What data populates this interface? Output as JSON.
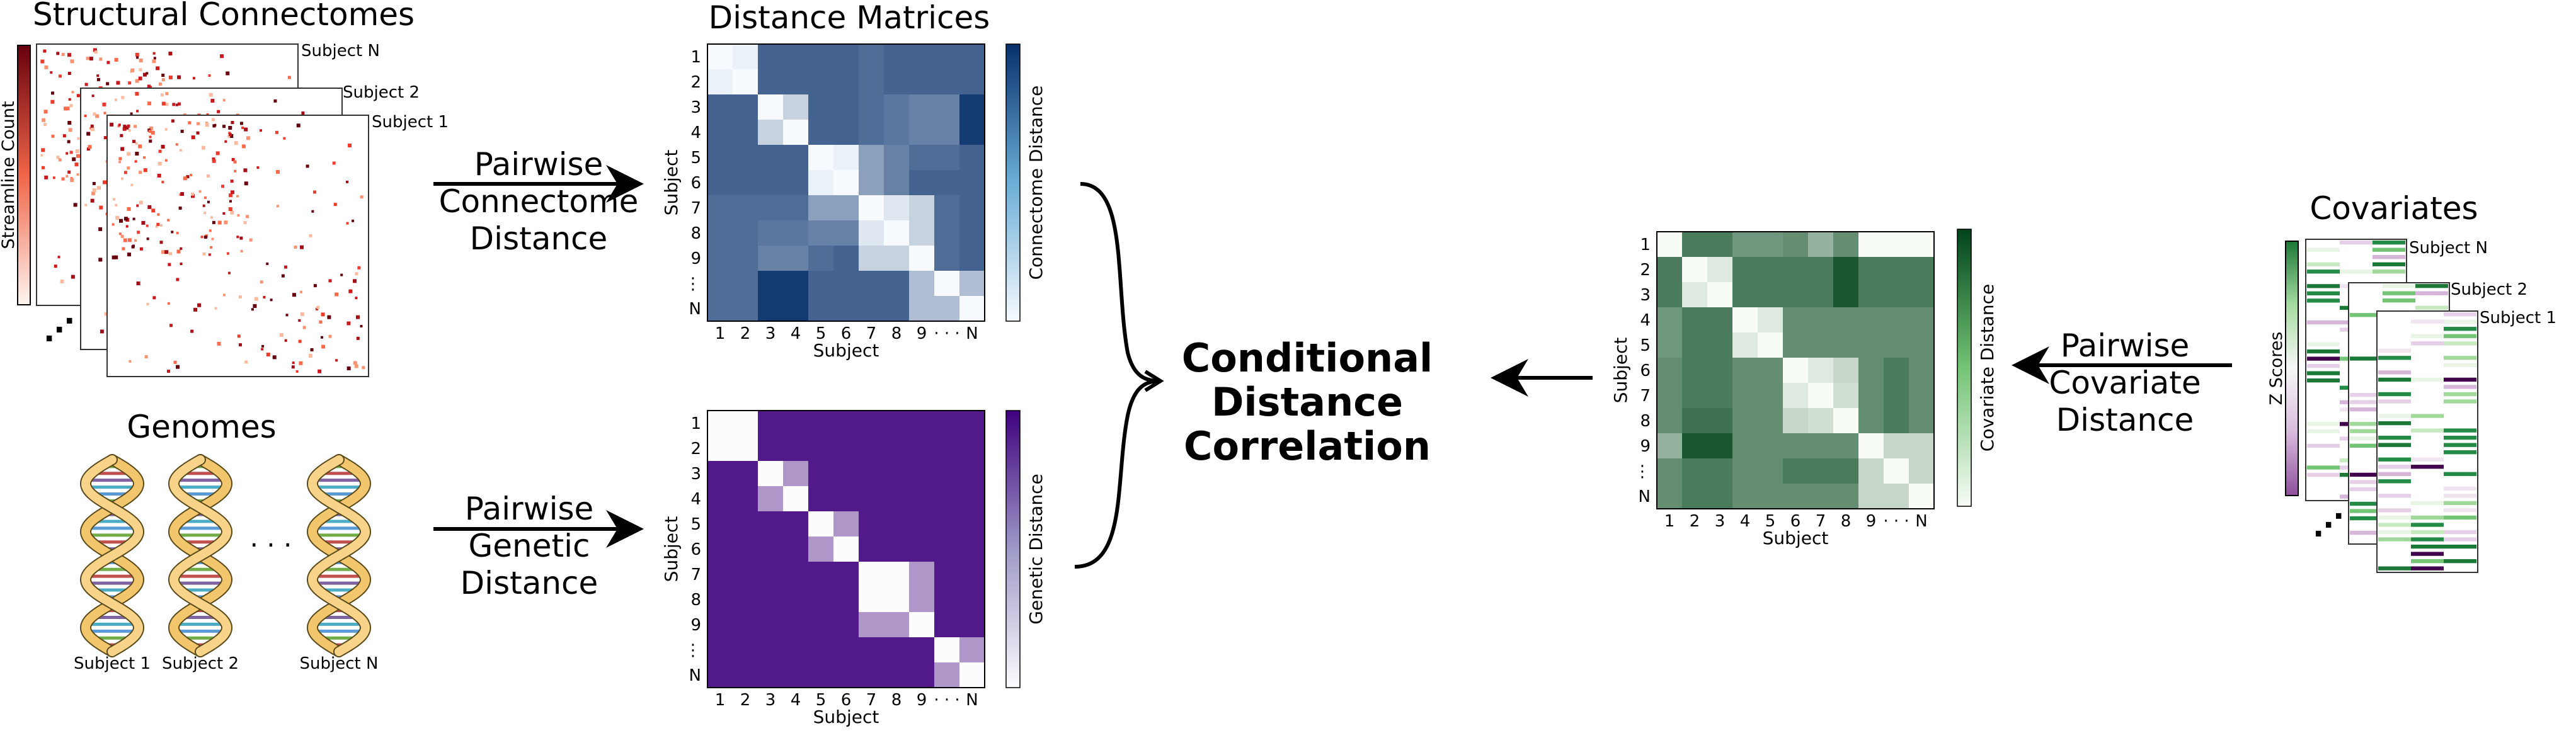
{
  "structural": {
    "title": "Structural Connectomes",
    "colorbar_label": "Streamline Count",
    "subjects": [
      "Subject N",
      "Subject 2",
      "Subject 1"
    ],
    "ellipsis": "⋰"
  },
  "genomes": {
    "title": "Genomes",
    "subjects": [
      "Subject 1",
      "Subject 2",
      "Subject N"
    ],
    "ellipsis": "· · ·"
  },
  "distance_matrices": {
    "title": "Distance Matrices"
  },
  "pairwise_connectome": {
    "line1": "Pairwise",
    "line2": "Connectome",
    "line3": "Distance"
  },
  "pairwise_genetic": {
    "line1": "Pairwise",
    "line2": "Genetic",
    "line3": "Distance"
  },
  "pairwise_covariate": {
    "line1": "Pairwise",
    "line2": "Covariate",
    "line3": "Distance"
  },
  "conditional": {
    "line1": "Conditional",
    "line2": "Distance",
    "line3": "Correlation"
  },
  "covariates": {
    "title": "Covariates",
    "colorbar_label": "Z Scores",
    "subjects": [
      "Subject N",
      "Subject 2",
      "Subject 1"
    ],
    "ellipsis": "⋰"
  },
  "axis_ticks": [
    "1",
    "2",
    "3",
    "4",
    "5",
    "6",
    "7",
    "8",
    "9",
    "· · ·",
    "N"
  ],
  "axis_ticks_y": [
    "1",
    "2",
    "3",
    "4",
    "5",
    "6",
    "7",
    "8",
    "9",
    "·\n·\n·",
    "N"
  ],
  "chart_data": [
    {
      "type": "heatmap",
      "name": "connectome-distance",
      "xlabel": "Subject",
      "ylabel": "Subject",
      "colorbar_label": "Connectome Distance",
      "colormap": [
        "#f7fbff",
        "#08306b"
      ],
      "values": [
        [
          0.0,
          0.05,
          0.75,
          0.75,
          0.75,
          0.75,
          0.7,
          0.75,
          0.75,
          0.75,
          0.75
        ],
        [
          0.05,
          0.0,
          0.75,
          0.75,
          0.75,
          0.75,
          0.7,
          0.75,
          0.75,
          0.75,
          0.75
        ],
        [
          0.75,
          0.75,
          0.0,
          0.2,
          0.75,
          0.75,
          0.7,
          0.65,
          0.6,
          0.6,
          0.95
        ],
        [
          0.75,
          0.75,
          0.2,
          0.0,
          0.75,
          0.75,
          0.7,
          0.65,
          0.6,
          0.6,
          0.95
        ],
        [
          0.75,
          0.75,
          0.75,
          0.75,
          0.0,
          0.05,
          0.45,
          0.6,
          0.7,
          0.7,
          0.75
        ],
        [
          0.75,
          0.75,
          0.75,
          0.75,
          0.05,
          0.0,
          0.45,
          0.6,
          0.75,
          0.75,
          0.75
        ],
        [
          0.7,
          0.7,
          0.7,
          0.7,
          0.45,
          0.45,
          0.0,
          0.1,
          0.2,
          0.7,
          0.75
        ],
        [
          0.7,
          0.7,
          0.65,
          0.65,
          0.6,
          0.6,
          0.1,
          0.0,
          0.2,
          0.7,
          0.75
        ],
        [
          0.7,
          0.7,
          0.6,
          0.6,
          0.7,
          0.75,
          0.2,
          0.2,
          0.0,
          0.7,
          0.75
        ],
        [
          0.7,
          0.7,
          0.95,
          0.95,
          0.75,
          0.75,
          0.75,
          0.75,
          0.3,
          0.0,
          0.3
        ],
        [
          0.7,
          0.7,
          0.95,
          0.95,
          0.75,
          0.75,
          0.75,
          0.75,
          0.3,
          0.3,
          0.0
        ]
      ]
    },
    {
      "type": "heatmap",
      "name": "genetic-distance",
      "xlabel": "Subject",
      "ylabel": "Subject",
      "colorbar_label": "Genetic Distance",
      "colormap": [
        "#fcfbfd",
        "#3f007d"
      ],
      "values": [
        [
          0.0,
          0.0,
          0.9,
          0.9,
          0.9,
          0.9,
          0.9,
          0.9,
          0.9,
          0.9,
          0.9
        ],
        [
          0.0,
          0.0,
          0.9,
          0.9,
          0.9,
          0.9,
          0.9,
          0.9,
          0.9,
          0.9,
          0.9
        ],
        [
          0.9,
          0.9,
          0.0,
          0.4,
          0.9,
          0.9,
          0.9,
          0.9,
          0.9,
          0.9,
          0.9
        ],
        [
          0.9,
          0.9,
          0.4,
          0.0,
          0.9,
          0.9,
          0.9,
          0.9,
          0.9,
          0.9,
          0.9
        ],
        [
          0.9,
          0.9,
          0.9,
          0.9,
          0.0,
          0.4,
          0.9,
          0.9,
          0.9,
          0.9,
          0.9
        ],
        [
          0.9,
          0.9,
          0.9,
          0.9,
          0.4,
          0.0,
          0.9,
          0.9,
          0.9,
          0.9,
          0.9
        ],
        [
          0.9,
          0.9,
          0.9,
          0.9,
          0.9,
          0.9,
          0.0,
          0.0,
          0.4,
          0.9,
          0.9
        ],
        [
          0.9,
          0.9,
          0.9,
          0.9,
          0.9,
          0.9,
          0.0,
          0.0,
          0.4,
          0.9,
          0.9
        ],
        [
          0.9,
          0.9,
          0.9,
          0.9,
          0.9,
          0.9,
          0.4,
          0.4,
          0.0,
          0.9,
          0.9
        ],
        [
          0.9,
          0.9,
          0.9,
          0.9,
          0.9,
          0.9,
          0.9,
          0.9,
          0.9,
          0.0,
          0.4
        ],
        [
          0.9,
          0.9,
          0.9,
          0.9,
          0.9,
          0.9,
          0.9,
          0.9,
          0.9,
          0.4,
          0.0
        ]
      ]
    },
    {
      "type": "heatmap",
      "name": "covariate-distance",
      "xlabel": "Subject",
      "ylabel": "Subject",
      "colorbar_label": "Covariate Distance",
      "colormap": [
        "#f7fcf5",
        "#00441b"
      ],
      "values": [
        [
          0.0,
          0.7,
          0.7,
          0.55,
          0.55,
          0.6,
          0.4,
          0.6,
          0.0,
          0.0,
          0.0
        ],
        [
          0.7,
          0.0,
          0.1,
          0.7,
          0.7,
          0.7,
          0.7,
          0.9,
          0.7,
          0.7,
          0.7
        ],
        [
          0.7,
          0.1,
          0.0,
          0.7,
          0.7,
          0.7,
          0.7,
          0.9,
          0.7,
          0.7,
          0.7
        ],
        [
          0.55,
          0.7,
          0.7,
          0.0,
          0.1,
          0.6,
          0.6,
          0.6,
          0.6,
          0.6,
          0.6
        ],
        [
          0.55,
          0.7,
          0.7,
          0.1,
          0.0,
          0.6,
          0.6,
          0.6,
          0.6,
          0.6,
          0.6
        ],
        [
          0.6,
          0.7,
          0.7,
          0.6,
          0.6,
          0.0,
          0.1,
          0.2,
          0.6,
          0.7,
          0.6
        ],
        [
          0.6,
          0.7,
          0.7,
          0.6,
          0.6,
          0.1,
          0.0,
          0.15,
          0.6,
          0.7,
          0.6
        ],
        [
          0.6,
          0.75,
          0.75,
          0.6,
          0.6,
          0.2,
          0.15,
          0.0,
          0.6,
          0.7,
          0.6
        ],
        [
          0.4,
          0.9,
          0.9,
          0.6,
          0.6,
          0.6,
          0.6,
          0.6,
          0.0,
          0.2,
          0.2
        ],
        [
          0.6,
          0.7,
          0.7,
          0.6,
          0.6,
          0.7,
          0.7,
          0.7,
          0.2,
          0.0,
          0.2
        ],
        [
          0.6,
          0.7,
          0.7,
          0.6,
          0.6,
          0.6,
          0.6,
          0.6,
          0.2,
          0.2,
          0.0
        ]
      ]
    }
  ]
}
